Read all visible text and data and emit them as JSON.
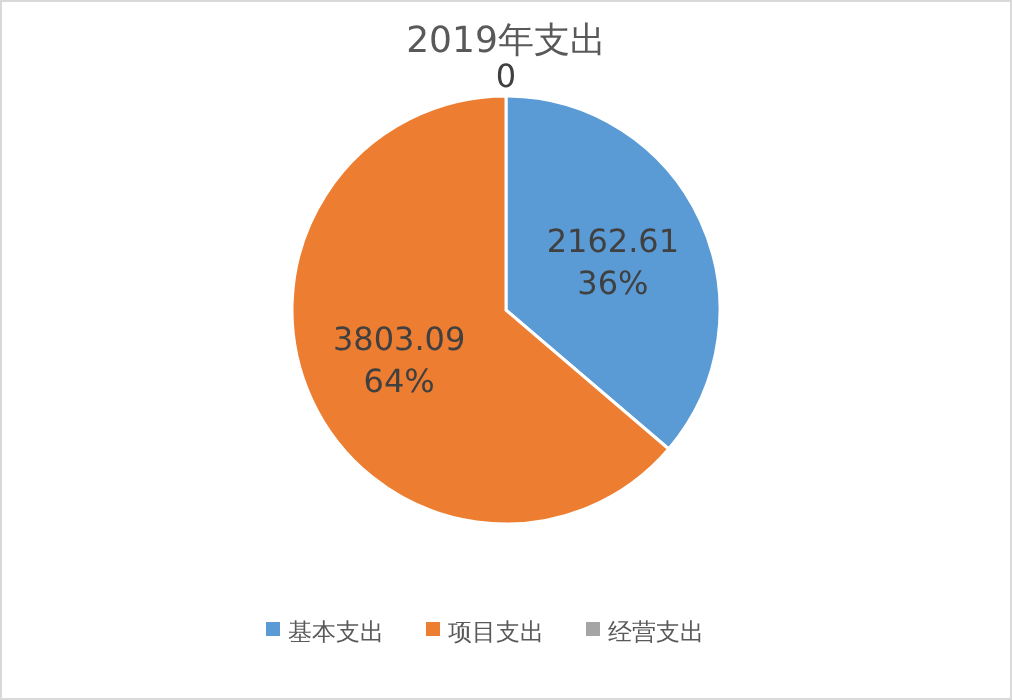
{
  "chart_data": {
    "type": "pie",
    "title": "2019年支出",
    "categories": [
      "基本支出",
      "项目支出",
      "经营支出"
    ],
    "values": [
      2162.61,
      3803.09,
      0
    ],
    "colors": [
      "#5b9bd5",
      "#ed7d31",
      "#a5a5a5"
    ],
    "value_labels": [
      "2162.61\n36%",
      "3803.09\n64%",
      "0"
    ],
    "legend": "bottom"
  }
}
